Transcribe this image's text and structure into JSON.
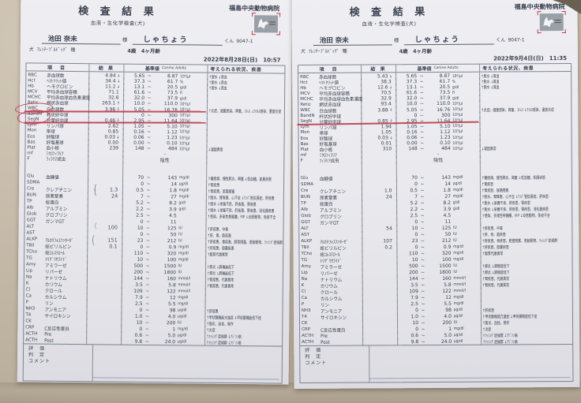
{
  "panel": {
    "title": "検 査 結 果",
    "subtitle": "血液・生化学検査(犬)",
    "hospital": "福島中央動物病院",
    "sama": "様",
    "kun": "くん",
    "breed_suffix": "種",
    "table_headers": {
      "item": "項 目",
      "result": "結 果",
      "reference": "基準値",
      "reference_sub": "Canine Adults",
      "remarks": "考えられる状況、疾患"
    },
    "footer_labels": [
      "評　価",
      "判　定",
      "コメント"
    ],
    "hema_rows": [
      {
        "code": "RBC",
        "name": "赤血球数",
        "lo": "5.65",
        "hi": "8.87",
        "unit": "10⁶/μl",
        "note": "↑脱水 ↓貧血"
      },
      {
        "code": "Hct",
        "name": "ﾍﾏﾄｸﾘｯﾄ値",
        "lo": "37.3",
        "hi": "61.7",
        "unit": "%",
        "note": "↑脱水 ↓貧血"
      },
      {
        "code": "Hb",
        "name": "ヘモグロビン",
        "lo": "13.1",
        "hi": "20.5",
        "unit": "g/dl",
        "note": "↑脱水 ↓貧血"
      },
      {
        "code": "MCV",
        "name": "平均赤血球容積",
        "lo": "61.6",
        "hi": "73.5",
        "unit": "fl",
        "note": ""
      },
      {
        "code": "MCHC",
        "name": "平均赤血球血色素濃度",
        "lo": "32.0",
        "hi": "37.9",
        "unit": "g/dl",
        "note": ""
      },
      {
        "code": "Retic",
        "name": "網状赤血球",
        "lo": "10.0",
        "hi": "110.0",
        "unit": "10³/μl",
        "note": ""
      },
      {
        "code": "WBC",
        "name": "白血球数",
        "lo": "5.05",
        "hi": "16.76",
        "unit": "10³/μl",
        "note": "↑炎症、細菌感染、興奮、ｽﾄﾚｽ ↓ｳｲﾙｽ感染、重度炎症"
      },
      {
        "code": "BandN",
        "name": "杆状好中球",
        "lo": "0",
        "hi": "300",
        "unit": "10³/μl",
        "note": ""
      },
      {
        "code": "SegN",
        "name": "分葉好中球",
        "lo": "2.95",
        "hi": "11.64",
        "unit": "10³/μl",
        "note": ""
      },
      {
        "code": "Lym",
        "name": "リンパ球",
        "lo": "1.05",
        "hi": "5.10",
        "unit": "10³/μl",
        "note": ""
      },
      {
        "code": "Mon",
        "name": "単球",
        "lo": "0.16",
        "hi": "1.12",
        "unit": "10³/μl",
        "note": ""
      },
      {
        "code": "Eos",
        "name": "好酸球",
        "lo": "0.06",
        "hi": "1.23",
        "unit": "10³/μl",
        "note": ""
      },
      {
        "code": "Bas",
        "name": "好塩基球",
        "lo": "0.00",
        "hi": "0.10",
        "unit": "10³/μl",
        "note": ""
      },
      {
        "code": "Plat",
        "name": "血小板",
        "lo": "148",
        "hi": "484",
        "unit": "10³/μl",
        "note": "↓凝固異常"
      },
      {
        "code": "mf",
        "name": "ﾐｸﾛﾌｨﾗﾘｱ",
        "text": "-",
        "note": ""
      },
      {
        "code": "F",
        "name": "ﾌｨﾗﾘｱ成虫",
        "text": "陰性",
        "note": ""
      }
    ],
    "chem_rows": [
      {
        "code": "Glu",
        "name": "血糖値",
        "lo": "70",
        "hi": "143",
        "unit": "mg/dl",
        "note": "↑糖尿病、慢性膵炎、興奮 ↓低血糖、飢餓状態"
      },
      {
        "code": "SDMA",
        "name": "",
        "lo": "0",
        "hi": "14",
        "unit": "μg/dl",
        "note": "↑腎疾患"
      },
      {
        "code": "Cre",
        "name": "クレアチニン",
        "lo": "0.5",
        "hi": "1.8",
        "unit": "mg/dl",
        "note": "↑腎疾患、尿路閉塞"
      },
      {
        "code": "BUN",
        "name": "尿素窒素",
        "lo": "7",
        "hi": "27",
        "unit": "mg/dl",
        "note": "↑脱水、腎障害、心不全 ↓ﾘﾝﾊﾟ管拡張症、肝疾患"
      },
      {
        "code": "TP",
        "name": "総蛋白",
        "lo": "5.2",
        "hi": "8.2",
        "unit": "g/dl",
        "note": "↑脱水 ↓栄養不良、肝疾患、腎疾患"
      },
      {
        "code": "Alb",
        "name": "アルブミン",
        "lo": "2.2",
        "hi": "3.9",
        "unit": "g/dl",
        "note": "↑脱水 ↓栄養不良、肝疾患、腎疾患、消化器疾患"
      },
      {
        "code": "Glob",
        "name": "グロブリン",
        "lo": "2.5",
        "hi": "4.5",
        "unit": "",
        "note": "↑感染、多発性骨髄腫、FIP ↓幼若動物、免疫不全"
      },
      {
        "code": "GGT",
        "name": "ガンマGT",
        "lo": "0",
        "hi": "11",
        "unit": "",
        "note": ""
      },
      {
        "code": "ALT",
        "name": "",
        "lo": "10",
        "hi": "125",
        "unit": "IU",
        "note": "↑肝疾患、中毒"
      },
      {
        "code": "AST",
        "name": "",
        "lo": "0",
        "hi": "50",
        "unit": "IU",
        "note": "↑肝、骨、筋疾患"
      },
      {
        "code": "ALKP",
        "name": "ｱﾙｶﾘﾌｫｽﾌｧﾀｰｾﾞ",
        "lo": "23",
        "hi": "212",
        "unit": "IU",
        "note": "↑肝疾患、骨疾患、胆管閉塞、若齢動物、ｸｯｼﾝｸﾞ症候群"
      },
      {
        "code": "TBil",
        "name": "総ビリルビン",
        "lo": "0",
        "hi": "0.9",
        "unit": "mg/dl",
        "note": "↑肝疾患、胆嚢疾患"
      },
      {
        "code": "TCho",
        "name": "総ｺﾚｽﾃﾛｰﾙ",
        "lo": "110",
        "hi": "320",
        "unit": "mg/dl",
        "note": "↑脂質代謝異常"
      },
      {
        "code": "TG",
        "name": "ﾄﾘｸﾞﾘｾﾗｲﾄﾞ",
        "lo": "10",
        "hi": "100",
        "unit": "mg/dl",
        "note": ""
      },
      {
        "code": "Amy",
        "name": "アミラーゼ",
        "lo": "500",
        "hi": "1500",
        "unit": "IU",
        "note": "↑膵炎 ↓膵機能低下"
      },
      {
        "code": "Lip",
        "name": "リパーゼ",
        "lo": "200",
        "hi": "1800",
        "unit": "IU",
        "note": "↑膵炎 ↓膵機能低下"
      },
      {
        "code": "Na",
        "name": "ナトリウム",
        "lo": "144",
        "hi": "160",
        "unit": "mmol/l",
        "note": "↑腎疾患、代謝異常"
      },
      {
        "code": "K",
        "name": "カリウム",
        "lo": "3.5",
        "hi": "5.8",
        "unit": "mmol/l",
        "note": "↑腎疾患、代謝異常"
      },
      {
        "code": "Cl",
        "name": "クロール",
        "lo": "109",
        "hi": "122",
        "unit": "mmol/l",
        "note": ""
      },
      {
        "code": "Ca",
        "name": "カルシウム",
        "lo": "7.9",
        "hi": "12",
        "unit": "mg/dl",
        "note": ""
      },
      {
        "code": "P",
        "name": "リン",
        "lo": "2.5",
        "hi": "5.5",
        "unit": "mg/dl",
        "note": ""
      },
      {
        "code": "NH3",
        "name": "アンモニア",
        "lo": "0",
        "hi": "98",
        "unit": "μg/dl",
        "note": "↑肝疾患"
      },
      {
        "code": "T4",
        "name": "サイロキシン",
        "lo": "1.0",
        "hi": "4.0",
        "unit": "μg/dl",
        "note": "↑甲状腺機能亢進症 ↓甲状腺機能低下症"
      },
      {
        "code": "CK",
        "name": "",
        "lo": "10",
        "hi": "200",
        "unit": "IU",
        "note": "↑筋炎、血栓、発作"
      },
      {
        "code": "CRP",
        "name": "C反応性蛋白",
        "lo": "0",
        "hi": "1",
        "unit": "mg/dl",
        "note": "↑炎症"
      },
      {
        "code": "ACTH",
        "name": "Pre",
        "lo": "0.6",
        "hi": "5.0",
        "unit": "μg/dl",
        "note": "↑ｸｯｼﾝｸﾞ症候群 ↓ｱｼﾞｿﾝ病"
      },
      {
        "code": "ACTH",
        "name": "Post",
        "lo": "9.8",
        "hi": "24.0",
        "unit": "μg/dl",
        "note": "↑ｸｯｼﾝｸﾞ症候群 ↓ｱｼﾞｿﾝ病"
      }
    ]
  },
  "docs": [
    {
      "owner_name": "池田 奈未",
      "pet_name": "しゃちょう",
      "chart_no": "9047-1",
      "species": "犬",
      "breed": "ﾌﾚﾝﾁ･ﾌﾞﾙﾄﾞｯｸﾞ",
      "age": "4歳　4ヶ月齢",
      "datetime": "2022年8月28日(日)　10:57",
      "hema_results": [
        {
          "v": "4.84",
          "f": "↓"
        },
        {
          "v": "34.4",
          "f": "↓"
        },
        {
          "v": "11.2",
          "f": "↓"
        },
        {
          "v": "71.1",
          "f": ""
        },
        {
          "v": "32.6",
          "f": ""
        },
        {
          "v": "263.1",
          "f": "↑"
        },
        {
          "v": "3.96",
          "f": "↓"
        },
        {
          "v": "",
          "f": ""
        },
        {
          "v": "0.46",
          "f": "↓"
        },
        {
          "v": "2.62",
          "f": ""
        },
        {
          "v": "0.85",
          "f": ""
        },
        {
          "v": "0.03",
          "f": "↓"
        },
        {
          "v": "0.00",
          "f": ""
        },
        {
          "v": "239",
          "f": ""
        },
        {
          "v": "",
          "f": ""
        },
        {
          "v": "",
          "f": ""
        }
      ],
      "chem_results": [
        null,
        null,
        {
          "v": "1.3",
          "hand": true
        },
        {
          "v": "24",
          "hand": true
        },
        null,
        null,
        null,
        null,
        {
          "v": "100",
          "hand": true
        },
        null,
        {
          "v": "151",
          "hand": true
        },
        {
          "v": "0.1",
          "hand": true
        },
        null,
        null,
        null,
        null,
        null,
        null,
        null,
        null,
        null,
        null,
        null,
        null,
        null,
        null,
        null
      ],
      "red_circles": [
        {
          "row": "WBC",
          "style": "s1"
        },
        {
          "row": "BandN",
          "style": "s2"
        }
      ],
      "red_underlines": [
        "WBC",
        "SegN"
      ],
      "pen_braces": [
        {
          "row": "Cre",
          "glyph": "{",
          "style": "s2"
        },
        {
          "row": "ALT",
          "glyph": "(",
          "style": "s1"
        },
        {
          "row": "ALKP",
          "glyph": "(",
          "style": "s2"
        }
      ]
    },
    {
      "owner_name": "池田 奈未",
      "pet_name": "しゃちょう",
      "chart_no": "9047-1",
      "species": "犬",
      "breed": "ﾌﾚﾝﾁ･ﾌﾞﾙﾄﾞｯｸﾞ",
      "age": "4歳　4ヶ月齢",
      "datetime": "2022年9月4日(日)　11:35",
      "hema_results": [
        {
          "v": "5.43",
          "f": "↓"
        },
        {
          "v": "38.3",
          "f": ""
        },
        {
          "v": "12.6",
          "f": "↓"
        },
        {
          "v": "70.5",
          "f": ""
        },
        {
          "v": "32.9",
          "f": ""
        },
        {
          "v": "93.4",
          "f": ""
        },
        {
          "v": "3.88",
          "f": "↓"
        },
        {
          "v": "",
          "f": ""
        },
        {
          "v": "0.85",
          "f": "↓"
        },
        {
          "v": "1.94",
          "f": ""
        },
        {
          "v": "1.05",
          "f": ""
        },
        {
          "v": "0.03",
          "f": "↓"
        },
        {
          "v": "0.01",
          "f": ""
        },
        {
          "v": "310",
          "f": ""
        },
        {
          "v": "",
          "f": ""
        },
        {
          "v": "",
          "f": ""
        }
      ],
      "chem_results": [
        null,
        null,
        {
          "v": "1.0"
        },
        {
          "v": "24"
        },
        null,
        null,
        null,
        null,
        {
          "v": "54"
        },
        null,
        {
          "v": "107"
        },
        {
          "v": "0.2"
        },
        null,
        null,
        null,
        null,
        null,
        null,
        null,
        null,
        null,
        null,
        null,
        null,
        null,
        null,
        null
      ],
      "red_circles": [],
      "red_underlines": [
        "SegN"
      ],
      "pen_braces": []
    }
  ]
}
